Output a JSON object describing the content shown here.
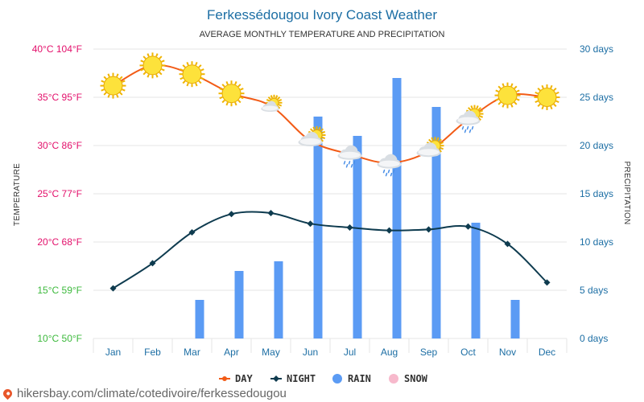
{
  "title": "Ferkessédougou Ivory Coast Weather",
  "subtitle": "AVERAGE MONTHLY TEMPERATURE AND PRECIPITATION",
  "left_axis_label": "TEMPERATURE",
  "right_axis_label": "PRECIPITATION",
  "footer_url": "hikersbay.com/climate/cotedivoire/ferkessedougou",
  "colors": {
    "day": "#f25b16",
    "night": "#0e3b4f",
    "rain": "#5b9bf4",
    "snow": "#f7b9cc",
    "grid": "#e6e6e6",
    "axis_blue": "#1c6ea4"
  },
  "chart_data": {
    "type": "line",
    "categories": [
      "Jan",
      "Feb",
      "Mar",
      "Apr",
      "May",
      "Jun",
      "Jul",
      "Aug",
      "Sep",
      "Oct",
      "Nov",
      "Dec"
    ],
    "series": [
      {
        "name": "DAY",
        "axis": "temperature",
        "unit": "°C",
        "values": [
          36.2,
          38.3,
          37.4,
          35.4,
          34.1,
          30.5,
          29.1,
          28.2,
          29.4,
          32.7,
          35.2,
          35.0
        ]
      },
      {
        "name": "NIGHT",
        "axis": "temperature",
        "unit": "°C",
        "values": [
          15.2,
          17.8,
          21.0,
          22.9,
          23.0,
          21.9,
          21.5,
          21.2,
          21.3,
          21.6,
          19.8,
          15.8
        ]
      },
      {
        "name": "RAIN",
        "type": "bar",
        "axis": "precipitation",
        "unit": "days",
        "values": [
          0,
          0,
          4,
          7,
          8,
          23,
          21,
          27,
          24,
          12,
          4,
          0
        ]
      },
      {
        "name": "SNOW",
        "type": "bar",
        "axis": "precipitation",
        "unit": "days",
        "values": [
          0,
          0,
          0,
          0,
          0,
          0,
          0,
          0,
          0,
          0,
          0,
          0
        ]
      }
    ],
    "weather_icons": [
      "sunny",
      "sunny",
      "sunny",
      "sunny",
      "partly-cloudy",
      "cloudy-sun",
      "rain",
      "rain",
      "cloudy-sun",
      "rain-sun",
      "sunny",
      "sunny"
    ],
    "left_axis": {
      "ylim": [
        10,
        40
      ],
      "ticks": [
        {
          "value": 40,
          "label": "40°C 104°F",
          "color": "#e3106b"
        },
        {
          "value": 35,
          "label": "35°C 95°F",
          "color": "#e3106b"
        },
        {
          "value": 30,
          "label": "30°C 86°F",
          "color": "#e3106b"
        },
        {
          "value": 25,
          "label": "25°C 77°F",
          "color": "#e3106b"
        },
        {
          "value": 20,
          "label": "20°C 68°F",
          "color": "#e3106b"
        },
        {
          "value": 15,
          "label": "15°C 59°F",
          "color": "#3cb93c"
        },
        {
          "value": 10,
          "label": "10°C 50°F",
          "color": "#3cb93c"
        }
      ]
    },
    "right_axis": {
      "ylim": [
        0,
        30
      ],
      "ticks": [
        {
          "value": 30,
          "label": "30 days"
        },
        {
          "value": 25,
          "label": "25 days"
        },
        {
          "value": 20,
          "label": "20 days"
        },
        {
          "value": 15,
          "label": "15 days"
        },
        {
          "value": 10,
          "label": "10 days"
        },
        {
          "value": 5,
          "label": "5 days"
        },
        {
          "value": 0,
          "label": "0 days"
        }
      ]
    },
    "grid": true,
    "legend_position": "bottom-center"
  }
}
